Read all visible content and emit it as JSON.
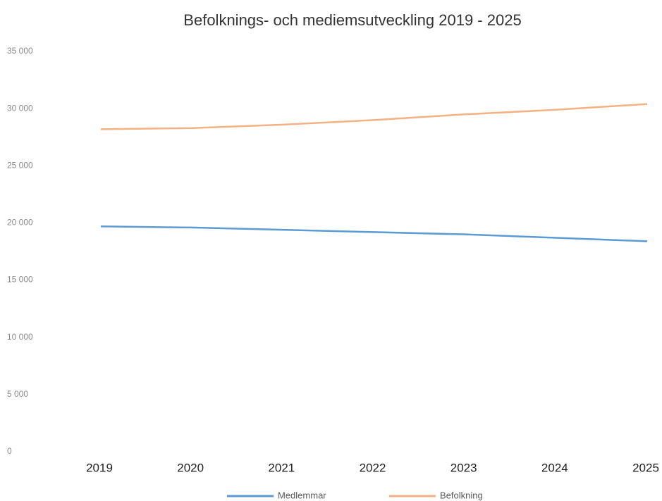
{
  "chart_data": {
    "type": "line",
    "title": "Befolknings- och mediemsutveckling 2019 - 2025",
    "categories": [
      "2019",
      "2020",
      "2021",
      "2022",
      "2023",
      "2024",
      "2025"
    ],
    "series": [
      {
        "name": "Medlemmar",
        "color": "#5b9bd5",
        "values": [
          19700,
          19600,
          19400,
          19200,
          19000,
          18700,
          18400
        ]
      },
      {
        "name": "Befolkning",
        "color": "#f4b183",
        "values": [
          28200,
          28300,
          28600,
          29000,
          29500,
          29900,
          30400
        ]
      }
    ],
    "ylim": [
      0,
      35000
    ],
    "yticks": [
      0,
      {
        "value": 5000,
        "label": "5 000"
      },
      {
        "value": 10000,
        "label": "10 000"
      },
      {
        "value": 15000,
        "label": "15 000"
      },
      {
        "value": 20000,
        "label": "20 000"
      },
      {
        "value": 25000,
        "label": "25 000"
      },
      {
        "value": 30000,
        "label": "30 000"
      },
      {
        "value": 35000,
        "label": "35 000"
      }
    ],
    "grid": false,
    "legend": "bottom"
  }
}
